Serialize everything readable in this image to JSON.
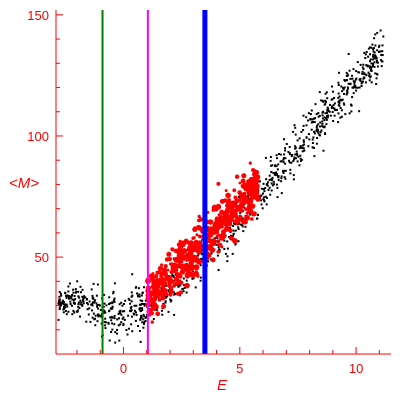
{
  "chart_data": {
    "type": "scatter",
    "title": "",
    "xlabel": "E",
    "ylabel": "<M>",
    "xlim": [
      -2.9,
      11.5
    ],
    "ylim": [
      10,
      152
    ],
    "x_ticks": [
      {
        "value": 0,
        "label": "0"
      },
      {
        "value": 5,
        "label": "5"
      },
      {
        "value": 10,
        "label": "10"
      }
    ],
    "y_ticks": [
      {
        "value": 50,
        "label": "50"
      },
      {
        "value": 100,
        "label": "100"
      },
      {
        "value": 150,
        "label": "150"
      }
    ],
    "grid": false,
    "legend": "none",
    "axis_color": "#ff0000",
    "series": [
      {
        "color": "#000000",
        "marker_size": "small",
        "trend_x": [
          -2.8,
          -2.0,
          -1.0,
          0.0,
          1.0,
          2.0,
          3.0,
          4.0,
          5.0,
          6.0,
          7.0,
          8.0,
          9.0,
          10.0,
          11.2
        ],
        "trend_y": [
          30,
          33,
          27,
          26,
          30,
          37,
          47,
          56,
          66,
          78,
          90,
          101,
          112,
          123,
          136
        ],
        "x_range": [
          -2.8,
          11.2
        ],
        "spread": 8
      },
      {
        "color": "#ff0000",
        "marker_size": "large",
        "trend_x": [
          1.0,
          2.0,
          3.0,
          4.0,
          5.0,
          5.8
        ],
        "trend_y": [
          33,
          42,
          52,
          62,
          72,
          80
        ],
        "x_range": [
          1.0,
          5.8
        ],
        "spread": 9
      }
    ],
    "vlines": [
      {
        "x": -0.9,
        "color": "#008000",
        "width": "thin"
      },
      {
        "x": 1.05,
        "color": "#ff00ff",
        "width": "thin"
      },
      {
        "x": 3.5,
        "color": "#0000ff",
        "width": "thick"
      }
    ]
  }
}
